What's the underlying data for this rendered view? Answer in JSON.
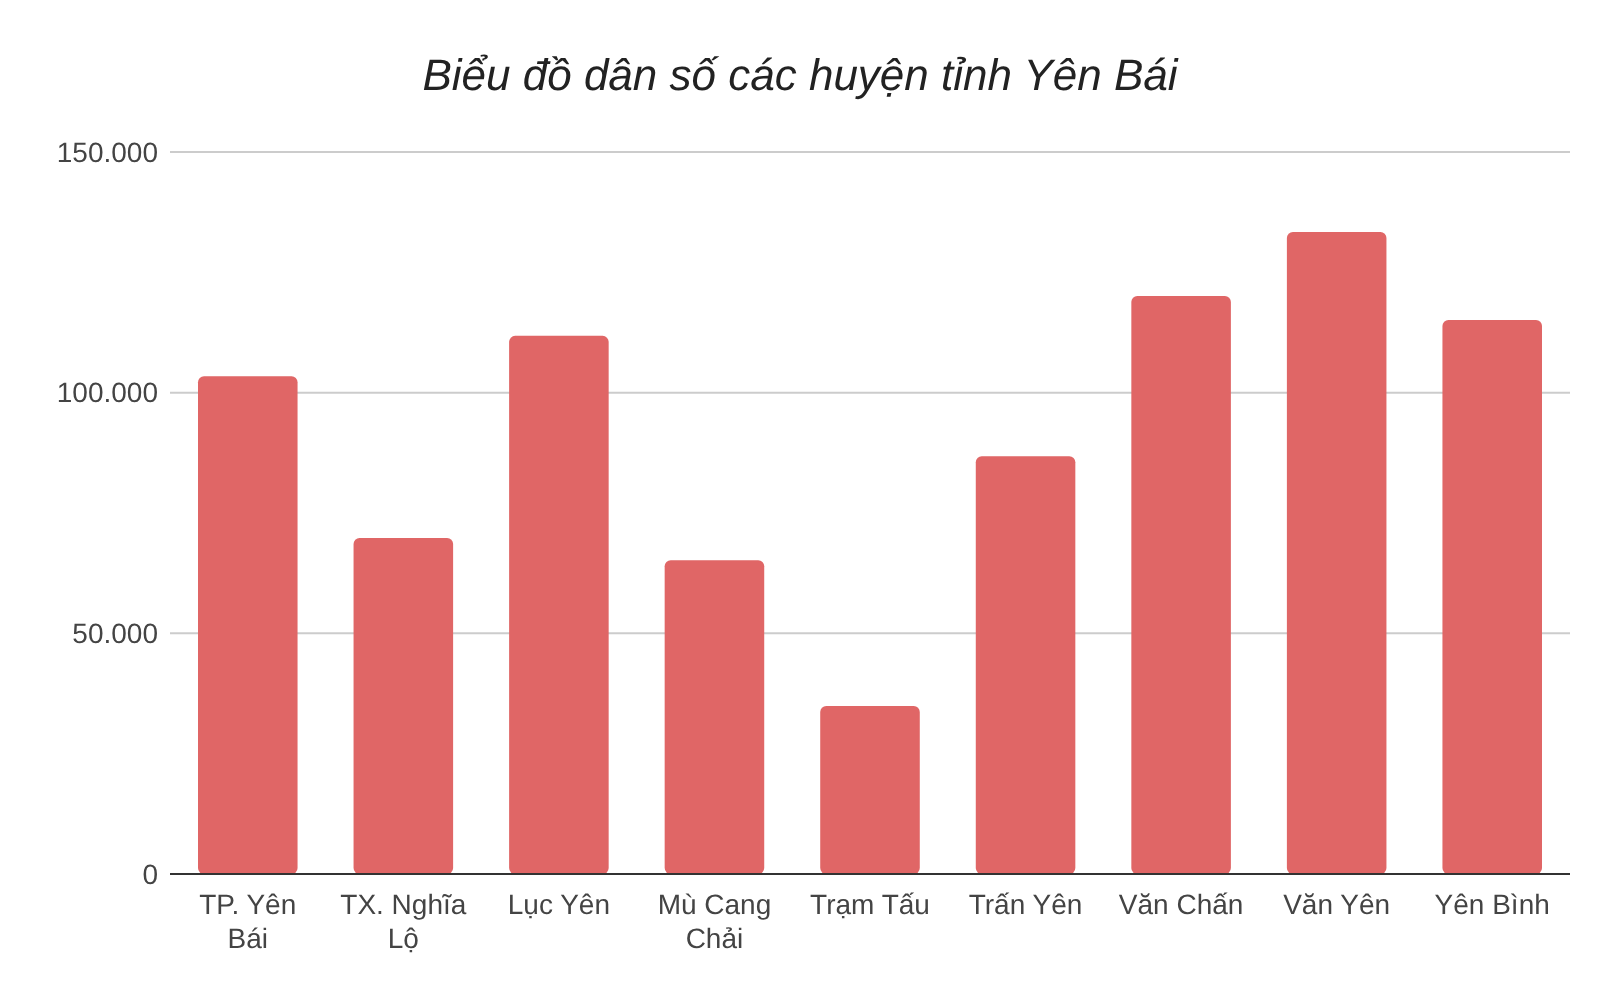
{
  "chart_data": {
    "type": "bar",
    "title": "Biểu đồ dân số các huyện tỉnh Yên Bái",
    "categories": [
      "TP. Yên Bái",
      "TX. Nghĩa Lộ",
      "Lục Yên",
      "Mù Cang Chải",
      "Trạm Tấu",
      "Trấn Yên",
      "Văn Chấn",
      "Văn Yên",
      "Yên Bình"
    ],
    "values": [
      103400,
      69800,
      111800,
      65200,
      34900,
      86800,
      120100,
      133400,
      115100
    ],
    "color": "#e06666",
    "ylim": [
      0,
      150000
    ],
    "yticks": [
      0,
      {
        "value": 50000,
        "label": "50.000"
      },
      {
        "value": 100000,
        "label": "100.000"
      },
      {
        "value": 150000,
        "label": "150.000"
      }
    ],
    "grid": "y"
  }
}
